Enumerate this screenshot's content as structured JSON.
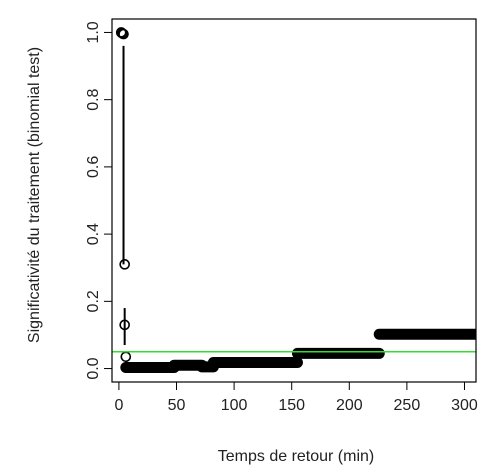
{
  "chart_data": {
    "type": "scatter",
    "title": "",
    "xlabel": "Temps de retour (min)",
    "ylabel": "Significativité du traitement (binomial test)",
    "xlim": [
      -6,
      310
    ],
    "ylim": [
      -0.04,
      1.04
    ],
    "x_ticks": [
      0,
      50,
      100,
      150,
      200,
      250,
      300
    ],
    "y_ticks": [
      0.0,
      0.2,
      0.4,
      0.6,
      0.8,
      1.0
    ],
    "grid": false,
    "reference_line": {
      "y": 0.05,
      "color": "#33dd33"
    },
    "marker_color": "#000000",
    "segments": [
      {
        "x_start": 6,
        "x_end": 48,
        "y": 0.003
      },
      {
        "x_start": 48,
        "x_end": 72,
        "y": 0.01
      },
      {
        "x_start": 72,
        "x_end": 82,
        "y": 0.005
      },
      {
        "x_start": 82,
        "x_end": 155,
        "y": 0.018
      },
      {
        "x_start": 155,
        "x_end": 226,
        "y": 0.045
      },
      {
        "x_start": 226,
        "x_end": 310,
        "y": 0.102
      }
    ],
    "points": [
      {
        "x": 2,
        "y": 1.0
      },
      {
        "x": 3,
        "y": 0.997
      },
      {
        "x": 4,
        "y": 0.995
      },
      {
        "x": 5,
        "y": 0.31
      },
      {
        "x": 5,
        "y": 0.13
      },
      {
        "x": 6,
        "y": 0.035
      }
    ],
    "vertical_segments": [
      {
        "x": 4,
        "y_start": 0.96,
        "y_end": 0.31
      },
      {
        "x": 5,
        "y_start": 0.18,
        "y_end": 0.07
      }
    ]
  }
}
